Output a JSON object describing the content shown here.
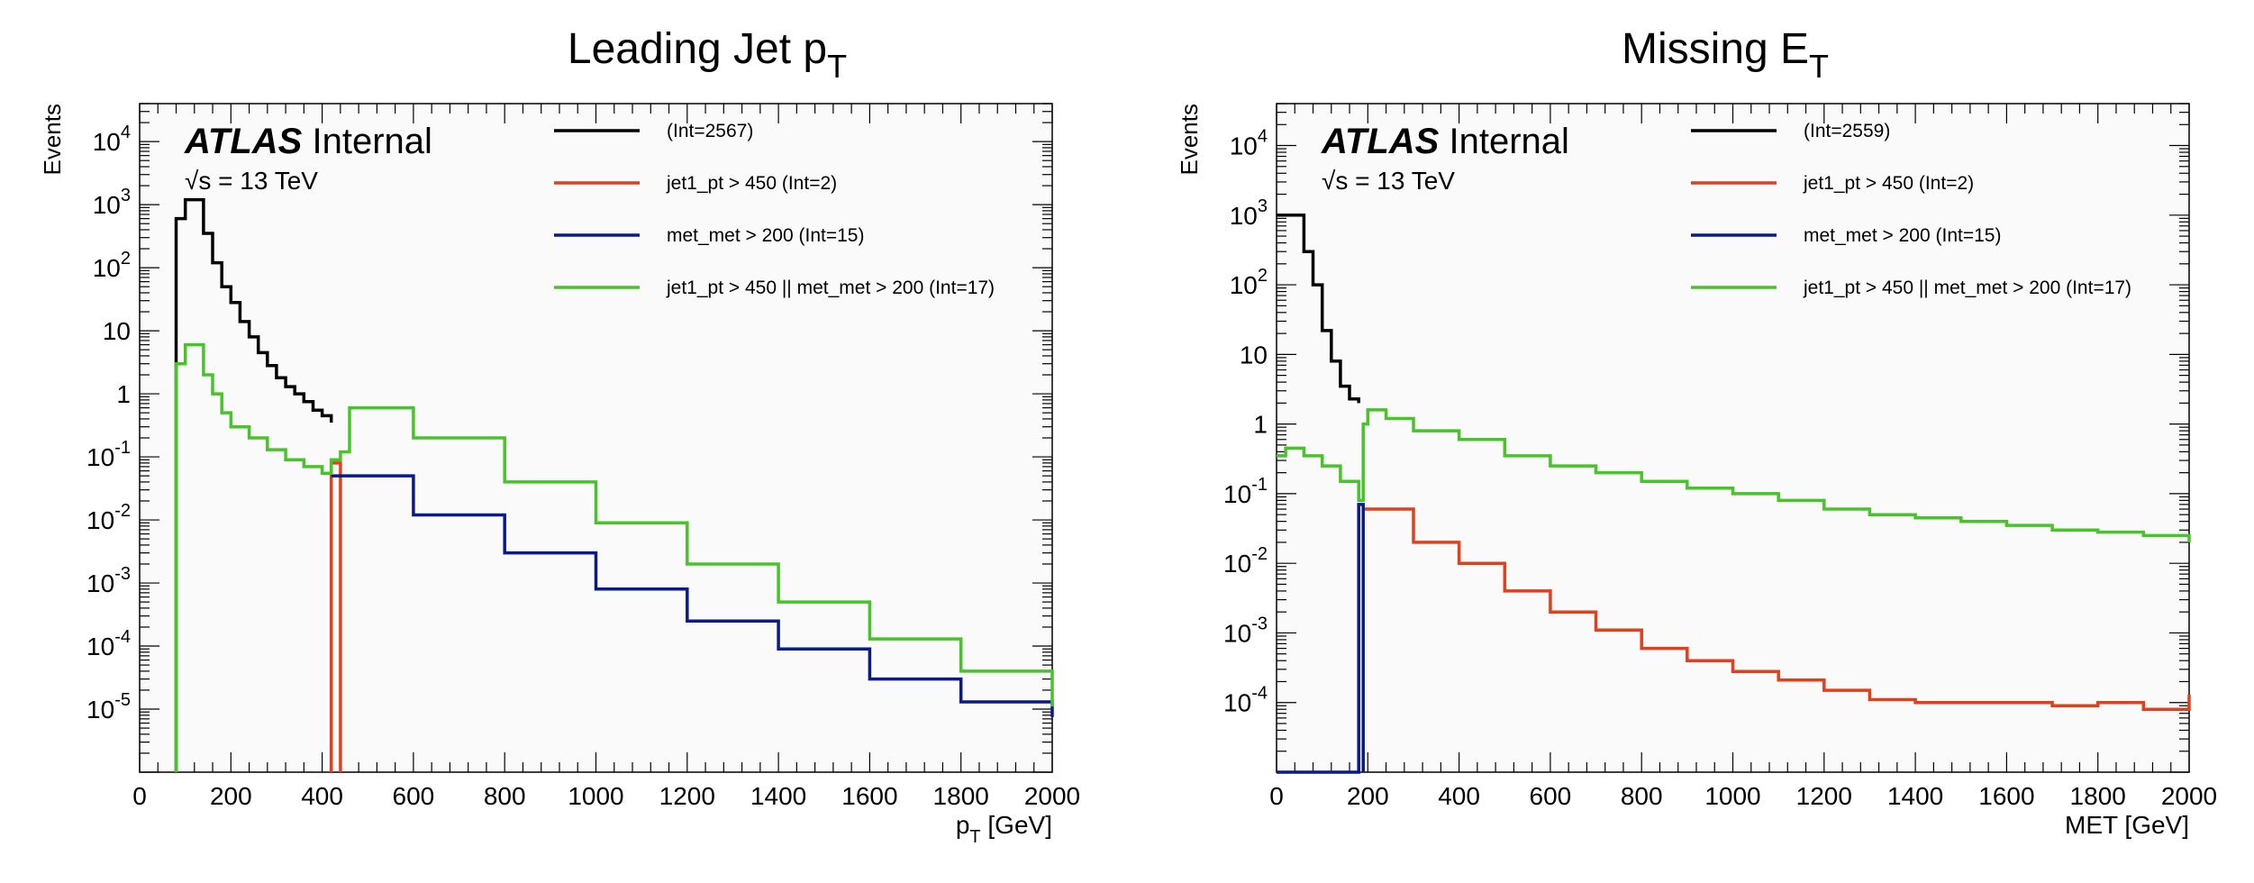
{
  "chart_data": [
    {
      "type": "step-histogram",
      "title": "Leading Jet p",
      "title_sub": "T",
      "ylabel": "Events",
      "xlabel": "p",
      "xlabel_sub": "T",
      "xlabel_unit": " [GeV]",
      "experiment": "ATLAS",
      "experiment_status": "Internal",
      "energy_label": "√s = 13 TeV",
      "xlim": [
        0,
        2000
      ],
      "ylim": [
        1e-06,
        40000
      ],
      "y_scale": "log",
      "x_ticks": [
        "0",
        "200",
        "400",
        "600",
        "800",
        "1000",
        "1200",
        "1400",
        "1600",
        "1800",
        "2000"
      ],
      "y_ticks": [
        {
          "base": "10",
          "exp": "-5",
          "value": 1e-05
        },
        {
          "base": "10",
          "exp": "-4",
          "value": 0.0001
        },
        {
          "base": "10",
          "exp": "-3",
          "value": 0.001
        },
        {
          "base": "10",
          "exp": "-2",
          "value": 0.01
        },
        {
          "base": "10",
          "exp": "-1",
          "value": 0.1
        },
        {
          "base": "1",
          "exp": "",
          "value": 1
        },
        {
          "base": "10",
          "exp": "",
          "value": 10
        },
        {
          "base": "10",
          "exp": "2",
          "value": 100
        },
        {
          "base": "10",
          "exp": "3",
          "value": 1000
        },
        {
          "base": "10",
          "exp": "4",
          "value": 10000
        }
      ],
      "legend_position": "top-right",
      "series": [
        {
          "name": "(Int=2567)",
          "color": "#000000",
          "points": [
            [
              80,
              1e-06
            ],
            [
              80,
              600
            ],
            [
              100,
              1200
            ],
            [
              140,
              350
            ],
            [
              160,
              120
            ],
            [
              180,
              50
            ],
            [
              200,
              28
            ],
            [
              220,
              14
            ],
            [
              240,
              8
            ],
            [
              260,
              4.5
            ],
            [
              280,
              2.8
            ],
            [
              300,
              1.8
            ],
            [
              320,
              1.3
            ],
            [
              340,
              1.0
            ],
            [
              360,
              0.75
            ],
            [
              380,
              0.55
            ],
            [
              400,
              0.45
            ],
            [
              420,
              0.35
            ]
          ]
        },
        {
          "name": "jet1_pt > 450 (Int=2)",
          "color": "#e0401c",
          "points": [
            [
              420,
              1e-06
            ],
            [
              420,
              0.08
            ],
            [
              440,
              0.08
            ],
            [
              440,
              1e-06
            ]
          ]
        },
        {
          "name": "met_met > 200 (Int=15)",
          "color": "#0a1a8c",
          "points": [
            [
              420,
              0.05
            ],
            [
              600,
              0.012
            ],
            [
              800,
              0.003
            ],
            [
              1000,
              0.0008
            ],
            [
              1200,
              0.00025
            ],
            [
              1400,
              9e-05
            ],
            [
              1600,
              3e-05
            ],
            [
              1800,
              1.3e-05
            ],
            [
              2000,
              7.5e-06
            ]
          ]
        },
        {
          "name": "jet1_pt > 450 || met_met > 200 (Int=17)",
          "color": "#47c42a",
          "points": [
            [
              80,
              1e-06
            ],
            [
              80,
              3
            ],
            [
              100,
              6
            ],
            [
              140,
              2
            ],
            [
              160,
              1
            ],
            [
              180,
              0.5
            ],
            [
              200,
              0.3
            ],
            [
              240,
              0.2
            ],
            [
              280,
              0.13
            ],
            [
              320,
              0.09
            ],
            [
              360,
              0.07
            ],
            [
              400,
              0.055
            ],
            [
              420,
              0.09
            ],
            [
              440,
              0.12
            ],
            [
              460,
              0.6
            ],
            [
              600,
              0.2
            ],
            [
              800,
              0.04
            ],
            [
              1000,
              0.009
            ],
            [
              1200,
              0.002
            ],
            [
              1400,
              0.0005
            ],
            [
              1600,
              0.00013
            ],
            [
              1800,
              4e-05
            ],
            [
              2000,
              1.1e-05
            ]
          ]
        }
      ]
    },
    {
      "type": "step-histogram",
      "title": "Missing E",
      "title_sub": "T",
      "ylabel": "Events",
      "xlabel": "MET [GeV]",
      "xlabel_sub": "",
      "xlabel_unit": "",
      "experiment": "ATLAS",
      "experiment_status": "Internal",
      "energy_label": "√s = 13 TeV",
      "xlim": [
        0,
        2000
      ],
      "ylim": [
        1e-05,
        40000
      ],
      "y_scale": "log",
      "x_ticks": [
        "0",
        "200",
        "400",
        "600",
        "800",
        "1000",
        "1200",
        "1400",
        "1600",
        "1800",
        "2000"
      ],
      "y_ticks": [
        {
          "base": "10",
          "exp": "-4",
          "value": 0.0001
        },
        {
          "base": "10",
          "exp": "-3",
          "value": 0.001
        },
        {
          "base": "10",
          "exp": "-2",
          "value": 0.01
        },
        {
          "base": "10",
          "exp": "-1",
          "value": 0.1
        },
        {
          "base": "1",
          "exp": "",
          "value": 1
        },
        {
          "base": "10",
          "exp": "",
          "value": 10
        },
        {
          "base": "10",
          "exp": "2",
          "value": 100
        },
        {
          "base": "10",
          "exp": "3",
          "value": 1000
        },
        {
          "base": "10",
          "exp": "4",
          "value": 10000
        }
      ],
      "legend_position": "top-right",
      "series": [
        {
          "name": "(Int=2559)",
          "color": "#000000",
          "points": [
            [
              0,
              1000
            ],
            [
              20,
              1000
            ],
            [
              40,
              1000
            ],
            [
              60,
              300
            ],
            [
              80,
              100
            ],
            [
              100,
              22
            ],
            [
              120,
              8
            ],
            [
              140,
              3.5
            ],
            [
              160,
              2.3
            ],
            [
              180,
              2
            ]
          ]
        },
        {
          "name": "jet1_pt > 450 (Int=2)",
          "color": "#e0401c",
          "points": [
            [
              190,
              0.06
            ],
            [
              300,
              0.02
            ],
            [
              400,
              0.01
            ],
            [
              500,
              0.004
            ],
            [
              600,
              0.002
            ],
            [
              700,
              0.0011
            ],
            [
              800,
              0.0006
            ],
            [
              900,
              0.0004
            ],
            [
              1000,
              0.00028
            ],
            [
              1100,
              0.00021
            ],
            [
              1200,
              0.00015
            ],
            [
              1300,
              0.00011
            ],
            [
              1400,
              0.0001
            ],
            [
              1500,
              0.0001
            ],
            [
              1600,
              0.0001
            ],
            [
              1700,
              9e-05
            ],
            [
              1800,
              0.0001
            ],
            [
              1900,
              8e-05
            ],
            [
              2000,
              0.00013
            ]
          ]
        },
        {
          "name": "met_met > 200 (Int=15)",
          "color": "#0a1a8c",
          "points": [
            [
              0,
              1e-05
            ],
            [
              180,
              1e-05
            ],
            [
              180,
              0.07
            ],
            [
              190,
              0.07
            ],
            [
              190,
              1e-05
            ]
          ]
        },
        {
          "name": "jet1_pt > 450 || met_met > 200 (Int=17)",
          "color": "#47c42a",
          "points": [
            [
              0,
              0.35
            ],
            [
              20,
              0.45
            ],
            [
              60,
              0.35
            ],
            [
              100,
              0.25
            ],
            [
              140,
              0.15
            ],
            [
              180,
              0.08
            ],
            [
              190,
              1.0
            ],
            [
              200,
              1.6
            ],
            [
              240,
              1.2
            ],
            [
              300,
              0.8
            ],
            [
              400,
              0.6
            ],
            [
              500,
              0.35
            ],
            [
              600,
              0.25
            ],
            [
              700,
              0.2
            ],
            [
              800,
              0.15
            ],
            [
              900,
              0.12
            ],
            [
              1000,
              0.1
            ],
            [
              1100,
              0.08
            ],
            [
              1200,
              0.06
            ],
            [
              1300,
              0.05
            ],
            [
              1400,
              0.045
            ],
            [
              1500,
              0.04
            ],
            [
              1600,
              0.035
            ],
            [
              1700,
              0.03
            ],
            [
              1800,
              0.028
            ],
            [
              1900,
              0.025
            ],
            [
              2000,
              0.02
            ]
          ]
        }
      ]
    }
  ]
}
